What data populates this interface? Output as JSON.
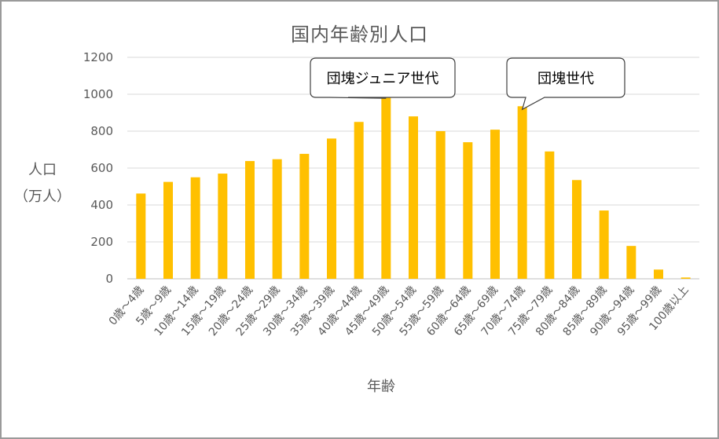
{
  "chart_data": {
    "type": "bar",
    "title": "国内年齢別人口",
    "ylabel_line1": "人口",
    "ylabel_line2": "（万人）",
    "xlabel": "年齢",
    "ylim": [
      0,
      1200
    ],
    "yticks": [
      "0",
      "200",
      "400",
      "600",
      "800",
      "1000",
      "1200"
    ],
    "grid": true,
    "bar_color": "#FFC000",
    "categories": [
      "0歳～4歳",
      "5歳～9歳",
      "10歳～14歳",
      "15歳～19歳",
      "20歳～24歳",
      "25歳～29歳",
      "30歳～34歳",
      "35歳～39歳",
      "40歳～44歳",
      "45歳～49歳",
      "50歳～54歳",
      "55歳～59歳",
      "60歳～64歳",
      "65歳～69歳",
      "70歳～74歳",
      "75歳～79歳",
      "80歳～84歳",
      "85歳～89歳",
      "90歳～94歳",
      "95歳～99歳",
      "100歳以上"
    ],
    "values": [
      462,
      525,
      550,
      570,
      638,
      648,
      677,
      760,
      850,
      995,
      880,
      800,
      740,
      808,
      935,
      690,
      535,
      370,
      178,
      50,
      7
    ],
    "annotations": [
      {
        "text": "団塊ジュニア世代",
        "category": "45歳～49歳"
      },
      {
        "text": "団塊世代",
        "category": "70歳～74歳"
      }
    ]
  }
}
